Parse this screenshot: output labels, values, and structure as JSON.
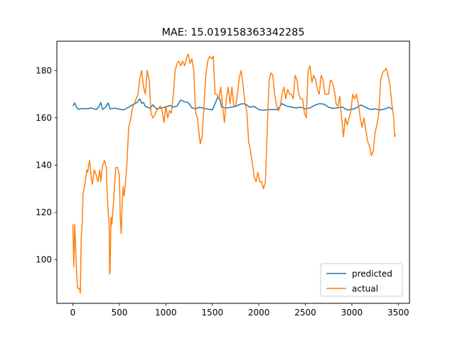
{
  "chart_data": {
    "type": "line",
    "title": "MAE: 15.019158363342285",
    "xlabel": "",
    "ylabel": "",
    "xlim": [
      -172,
      3620
    ],
    "ylim": [
      81.6,
      192.4
    ],
    "x_ticks": [
      0,
      500,
      1000,
      1500,
      2000,
      2500,
      3000,
      3500
    ],
    "y_ticks": [
      100,
      120,
      140,
      160,
      180
    ],
    "grid": false,
    "legend": {
      "placement": "lower-right",
      "entries": [
        "predicted",
        "actual"
      ]
    },
    "series": [
      {
        "name": "predicted",
        "color": "#1f77b4",
        "points": [
          [
            0,
            165
          ],
          [
            20,
            166.3
          ],
          [
            40,
            164.5
          ],
          [
            60,
            163.6
          ],
          [
            100,
            164
          ],
          [
            150,
            163.8
          ],
          [
            200,
            164.2
          ],
          [
            250,
            163.5
          ],
          [
            280,
            164.7
          ],
          [
            300,
            166.5
          ],
          [
            320,
            163.5
          ],
          [
            350,
            164.4
          ],
          [
            380,
            166.3
          ],
          [
            400,
            163.8
          ],
          [
            450,
            164.1
          ],
          [
            500,
            163.7
          ],
          [
            540,
            163.4
          ],
          [
            560,
            163.6
          ],
          [
            600,
            164.5
          ],
          [
            640,
            165.5
          ],
          [
            680,
            166.2
          ],
          [
            700,
            167
          ],
          [
            720,
            168
          ],
          [
            740,
            166.2
          ],
          [
            760,
            166.5
          ],
          [
            780,
            164.8
          ],
          [
            800,
            164.6
          ],
          [
            830,
            164
          ],
          [
            860,
            165.5
          ],
          [
            900,
            163.8
          ],
          [
            950,
            164.2
          ],
          [
            1000,
            164.5
          ],
          [
            1040,
            165.3
          ],
          [
            1080,
            164.5
          ],
          [
            1120,
            165
          ],
          [
            1160,
            167.5
          ],
          [
            1200,
            166.8
          ],
          [
            1240,
            166.5
          ],
          [
            1280,
            164.3
          ],
          [
            1320,
            163.8
          ],
          [
            1360,
            164.5
          ],
          [
            1400,
            164.1
          ],
          [
            1460,
            163.6
          ],
          [
            1500,
            163.4
          ],
          [
            1540,
            167
          ],
          [
            1560,
            168.9
          ],
          [
            1580,
            168
          ],
          [
            1600,
            164.5
          ],
          [
            1650,
            164.1
          ],
          [
            1700,
            164.5
          ],
          [
            1750,
            164.8
          ],
          [
            1800,
            165.8
          ],
          [
            1850,
            166
          ],
          [
            1900,
            164.5
          ],
          [
            1950,
            164.8
          ],
          [
            2000,
            163.5
          ],
          [
            2050,
            163.2
          ],
          [
            2100,
            163.5
          ],
          [
            2160,
            163.5
          ],
          [
            2200,
            163.5
          ],
          [
            2250,
            166
          ],
          [
            2300,
            165
          ],
          [
            2350,
            164.5
          ],
          [
            2400,
            164.2
          ],
          [
            2450,
            164.5
          ],
          [
            2500,
            163.8
          ],
          [
            2550,
            164.2
          ],
          [
            2600,
            165.3
          ],
          [
            2650,
            166
          ],
          [
            2700,
            165.8
          ],
          [
            2750,
            164.5
          ],
          [
            2800,
            164
          ],
          [
            2850,
            164.3
          ],
          [
            2900,
            164.6
          ],
          [
            2950,
            163.3
          ],
          [
            3000,
            163.6
          ],
          [
            3050,
            164.2
          ],
          [
            3100,
            165.5
          ],
          [
            3150,
            164.4
          ],
          [
            3200,
            163.5
          ],
          [
            3250,
            163.8
          ],
          [
            3300,
            163.3
          ],
          [
            3350,
            163.7
          ],
          [
            3400,
            164.5
          ],
          [
            3440,
            163.5
          ]
        ]
      },
      {
        "name": "actual",
        "color": "#ff7f0e",
        "points": [
          [
            0,
            115
          ],
          [
            10,
            97
          ],
          [
            20,
            115
          ],
          [
            30,
            105
          ],
          [
            40,
            95
          ],
          [
            50,
            88
          ],
          [
            70,
            88
          ],
          [
            80,
            86
          ],
          [
            90,
            110
          ],
          [
            100,
            115
          ],
          [
            110,
            128
          ],
          [
            130,
            132
          ],
          [
            150,
            138
          ],
          [
            160,
            137
          ],
          [
            170,
            140
          ],
          [
            180,
            142
          ],
          [
            190,
            138
          ],
          [
            200,
            134
          ],
          [
            210,
            132
          ],
          [
            230,
            138
          ],
          [
            250,
            136
          ],
          [
            270,
            133
          ],
          [
            290,
            138
          ],
          [
            300,
            133
          ],
          [
            320,
            140
          ],
          [
            340,
            142
          ],
          [
            360,
            139
          ],
          [
            370,
            127
          ],
          [
            380,
            120
          ],
          [
            390,
            116
          ],
          [
            395,
            94
          ],
          [
            400,
            95
          ],
          [
            410,
            118
          ],
          [
            420,
            115
          ],
          [
            440,
            126
          ],
          [
            460,
            139
          ],
          [
            480,
            139
          ],
          [
            500,
            136
          ],
          [
            510,
            118
          ],
          [
            520,
            111
          ],
          [
            530,
            123
          ],
          [
            540,
            131
          ],
          [
            550,
            127
          ],
          [
            560,
            130
          ],
          [
            580,
            140
          ],
          [
            600,
            156
          ],
          [
            620,
            159
          ],
          [
            640,
            164
          ],
          [
            660,
            166
          ],
          [
            680,
            168
          ],
          [
            700,
            170
          ],
          [
            720,
            177
          ],
          [
            740,
            180
          ],
          [
            760,
            173
          ],
          [
            780,
            170
          ],
          [
            800,
            180
          ],
          [
            820,
            176
          ],
          [
            840,
            162
          ],
          [
            860,
            160
          ],
          [
            880,
            161
          ],
          [
            900,
            163
          ],
          [
            920,
            164
          ],
          [
            940,
            165
          ],
          [
            960,
            163
          ],
          [
            980,
            158
          ],
          [
            1000,
            165
          ],
          [
            1020,
            160
          ],
          [
            1040,
            163
          ],
          [
            1060,
            162
          ],
          [
            1080,
            170
          ],
          [
            1100,
            180
          ],
          [
            1120,
            183
          ],
          [
            1140,
            184
          ],
          [
            1160,
            182
          ],
          [
            1180,
            184
          ],
          [
            1200,
            182
          ],
          [
            1220,
            185
          ],
          [
            1240,
            187
          ],
          [
            1260,
            183
          ],
          [
            1280,
            185
          ],
          [
            1300,
            180
          ],
          [
            1320,
            162
          ],
          [
            1340,
            160
          ],
          [
            1360,
            152
          ],
          [
            1370,
            149
          ],
          [
            1390,
            152
          ],
          [
            1410,
            165
          ],
          [
            1430,
            178
          ],
          [
            1450,
            184
          ],
          [
            1470,
            186
          ],
          [
            1490,
            185
          ],
          [
            1510,
            186
          ],
          [
            1530,
            170
          ],
          [
            1550,
            170
          ],
          [
            1570,
            168
          ],
          [
            1590,
            173
          ],
          [
            1610,
            165
          ],
          [
            1630,
            158
          ],
          [
            1650,
            168
          ],
          [
            1670,
            173
          ],
          [
            1690,
            166
          ],
          [
            1710,
            173
          ],
          [
            1730,
            165
          ],
          [
            1750,
            165
          ],
          [
            1770,
            170
          ],
          [
            1790,
            177
          ],
          [
            1810,
            180
          ],
          [
            1830,
            174
          ],
          [
            1850,
            166
          ],
          [
            1870,
            163
          ],
          [
            1890,
            150
          ],
          [
            1910,
            146
          ],
          [
            1930,
            141
          ],
          [
            1950,
            135
          ],
          [
            1970,
            133
          ],
          [
            1990,
            137
          ],
          [
            2010,
            133
          ],
          [
            2030,
            133
          ],
          [
            2050,
            130
          ],
          [
            2070,
            133
          ],
          [
            2090,
            155
          ],
          [
            2110,
            176
          ],
          [
            2130,
            179
          ],
          [
            2150,
            178
          ],
          [
            2170,
            170
          ],
          [
            2190,
            165
          ],
          [
            2210,
            163
          ],
          [
            2230,
            165
          ],
          [
            2250,
            170
          ],
          [
            2270,
            173
          ],
          [
            2290,
            168
          ],
          [
            2310,
            172
          ],
          [
            2330,
            170
          ],
          [
            2350,
            170
          ],
          [
            2370,
            168
          ],
          [
            2390,
            178
          ],
          [
            2410,
            176
          ],
          [
            2430,
            170
          ],
          [
            2450,
            168
          ],
          [
            2470,
            168
          ],
          [
            2490,
            162
          ],
          [
            2510,
            160
          ],
          [
            2530,
            180
          ],
          [
            2550,
            182
          ],
          [
            2570,
            175
          ],
          [
            2590,
            178
          ],
          [
            2610,
            176
          ],
          [
            2630,
            172
          ],
          [
            2650,
            170
          ],
          [
            2670,
            178
          ],
          [
            2690,
            176
          ],
          [
            2710,
            170
          ],
          [
            2730,
            170
          ],
          [
            2750,
            170
          ],
          [
            2770,
            176
          ],
          [
            2790,
            175
          ],
          [
            2810,
            172
          ],
          [
            2830,
            166
          ],
          [
            2850,
            165
          ],
          [
            2870,
            169
          ],
          [
            2890,
            160
          ],
          [
            2910,
            152
          ],
          [
            2930,
            160
          ],
          [
            2950,
            157
          ],
          [
            2970,
            160
          ],
          [
            2990,
            163
          ],
          [
            3010,
            170
          ],
          [
            3030,
            168
          ],
          [
            3050,
            170
          ],
          [
            3070,
            166
          ],
          [
            3090,
            160
          ],
          [
            3110,
            156
          ],
          [
            3130,
            160
          ],
          [
            3150,
            155
          ],
          [
            3170,
            150
          ],
          [
            3190,
            148
          ],
          [
            3210,
            144
          ],
          [
            3230,
            146
          ],
          [
            3250,
            154
          ],
          [
            3270,
            157
          ],
          [
            3290,
            162
          ],
          [
            3310,
            176
          ],
          [
            3330,
            179
          ],
          [
            3350,
            180
          ],
          [
            3370,
            181
          ],
          [
            3390,
            178
          ],
          [
            3410,
            174
          ],
          [
            3430,
            166
          ],
          [
            3450,
            160
          ],
          [
            3460,
            152
          ],
          [
            3470,
            153
          ]
        ]
      }
    ]
  }
}
